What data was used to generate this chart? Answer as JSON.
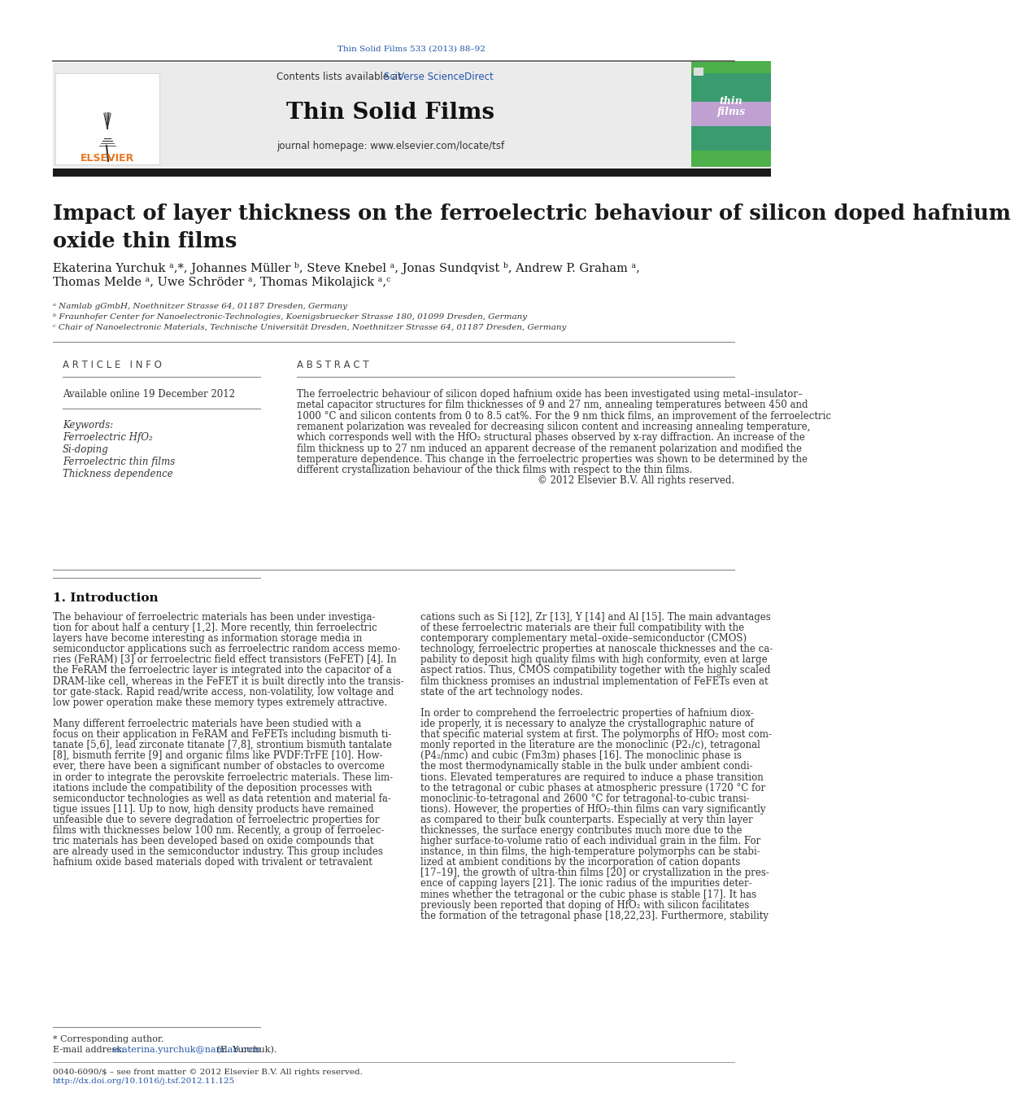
{
  "journal_ref": "Thin Solid Films 533 (2013) 88–92",
  "journal_name": "Thin Solid Films",
  "contents_text": "Contents lists available at ",
  "sciverse_text": "SciVerse ScienceDirect",
  "homepage_text": "journal homepage: www.elsevier.com/locate/tsf",
  "title": "Impact of layer thickness on the ferroelectric behaviour of silicon doped hafnium\noxide thin films",
  "affil_a": "ᵃ Namlab gGmbH, Noethnitzer Strasse 64, 01187 Dresden, Germany",
  "affil_b": "ᵇ Fraunhofer Center for Nanoelectronic-Technologies, Koenigsbruecker Strasse 180, 01099 Dresden, Germany",
  "affil_c": "ᶜ Chair of Nanoelectronic Materials, Technische Universität Dresden, Noethnitzer Strasse 64, 01187 Dresden, Germany",
  "article_info_header": "A R T I C L E   I N F O",
  "available_online": "Available online 19 December 2012",
  "keywords_header": "Keywords:",
  "keywords": [
    "Ferroelectric HfO₂",
    "Si-doping",
    "Ferroelectric thin films",
    "Thickness dependence"
  ],
  "abstract_header": "A B S T R A C T",
  "intro_header": "1. Introduction",
  "footnote1": "* Corresponding author.",
  "footnote2_pre": "E-mail address: ",
  "footnote2_email": "ekaterina.yurchuk@namlab.com",
  "footnote2_post": " (E. Yurchuk).",
  "footer1": "0040-6090/$ – see front matter © 2012 Elsevier B.V. All rights reserved.",
  "footer2": "http://dx.doi.org/10.1016/j.tsf.2012.11.125",
  "bg_color": "#ffffff",
  "link_color": "#2255aa",
  "elsevier_orange": "#e87722",
  "title_color": "#1a1a1a",
  "text_color": "#333333",
  "abstract_lines": [
    "The ferroelectric behaviour of silicon doped hafnium oxide has been investigated using metal–insulator–",
    "metal capacitor structures for film thicknesses of 9 and 27 nm, annealing temperatures between 450 and",
    "1000 °C and silicon contents from 0 to 8.5 cat%. For the 9 nm thick films, an improvement of the ferroelectric",
    "remanent polarization was revealed for decreasing silicon content and increasing annealing temperature,",
    "which corresponds well with the HfO₂ structural phases observed by x-ray diffraction. An increase of the",
    "film thickness up to 27 nm induced an apparent decrease of the remanent polarization and modified the",
    "temperature dependence. This change in the ferroelectric properties was shown to be determined by the",
    "different crystallization behaviour of the thick films with respect to the thin films.",
    "© 2012 Elsevier B.V. All rights reserved."
  ],
  "intro_col1_lines": [
    "The behaviour of ferroelectric materials has been under investiga-",
    "tion for about half a century [1,2]. More recently, thin ferroelectric",
    "layers have become interesting as information storage media in",
    "semiconductor applications such as ferroelectric random access memo-",
    "ries (FeRAM) [3] or ferroelectric field effect transistors (FeFET) [4]. In",
    "the FeRAM the ferroelectric layer is integrated into the capacitor of a",
    "DRAM-like cell, whereas in the FeFET it is built directly into the transis-",
    "tor gate-stack. Rapid read/write access, non-volatility, low voltage and",
    "low power operation make these memory types extremely attractive.",
    "",
    "Many different ferroelectric materials have been studied with a",
    "focus on their application in FeRAM and FeFETs including bismuth ti-",
    "tanate [5,6], lead zirconate titanate [7,8], strontium bismuth tantalate",
    "[8], bismuth ferrite [9] and organic films like PVDF:TrFE [10]. How-",
    "ever, there have been a significant number of obstacles to overcome",
    "in order to integrate the perovskite ferroelectric materials. These lim-",
    "itations include the compatibility of the deposition processes with",
    "semiconductor technologies as well as data retention and material fa-",
    "tigue issues [11]. Up to now, high density products have remained",
    "unfeasible due to severe degradation of ferroelectric properties for",
    "films with thicknesses below 100 nm. Recently, a group of ferroelec-",
    "tric materials has been developed based on oxide compounds that",
    "are already used in the semiconductor industry. This group includes",
    "hafnium oxide based materials doped with trivalent or tetravalent"
  ],
  "intro_col2_lines": [
    "cations such as Si [12], Zr [13], Y [14] and Al [15]. The main advantages",
    "of these ferroelectric materials are their full compatibility with the",
    "contemporary complementary metal–oxide–semiconductor (CMOS)",
    "technology, ferroelectric properties at nanoscale thicknesses and the ca-",
    "pability to deposit high quality films with high conformity, even at large",
    "aspect ratios. Thus, CMOS compatibility together with the highly scaled",
    "film thickness promises an industrial implementation of FeFETs even at",
    "state of the art technology nodes.",
    "",
    "In order to comprehend the ferroelectric properties of hafnium diox-",
    "ide properly, it is necessary to analyze the crystallographic nature of",
    "that specific material system at first. The polymorphs of HfO₂ most com-",
    "monly reported in the literature are the monoclinic (P2₁/c), tetragonal",
    "(P4₂/nmc) and cubic (Fm3m) phases [16]. The monoclinic phase is",
    "the most thermodynamically stable in the bulk under ambient condi-",
    "tions. Elevated temperatures are required to induce a phase transition",
    "to the tetragonal or cubic phases at atmospheric pressure (1720 °C for",
    "monoclinic-to-tetragonal and 2600 °C for tetragonal-to-cubic transi-",
    "tions). However, the properties of HfO₂-thin films can vary significantly",
    "as compared to their bulk counterparts. Especially at very thin layer",
    "thicknesses, the surface energy contributes much more due to the",
    "higher surface-to-volume ratio of each individual grain in the film. For",
    "instance, in thin films, the high-temperature polymorphs can be stabi-",
    "lized at ambient conditions by the incorporation of cation dopants",
    "[17–19], the growth of ultra-thin films [20] or crystallization in the pres-",
    "ence of capping layers [21]. The ionic radius of the impurities deter-",
    "mines whether the tetragonal or the cubic phase is stable [17]. It has",
    "previously been reported that doping of HfO₂ with silicon facilitates",
    "the formation of the tetragonal phase [18,22,23]. Furthermore, stability"
  ]
}
